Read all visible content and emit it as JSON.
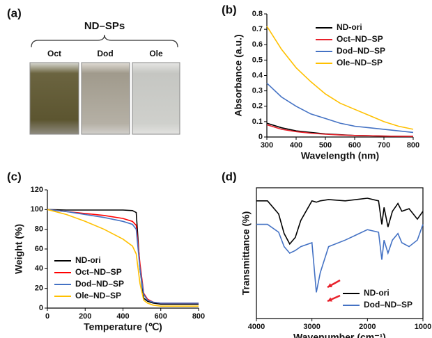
{
  "photo_panel": {
    "label": "(a)",
    "title": "ND–SPs",
    "samples": [
      "Oct",
      "Dod",
      "Ole"
    ]
  },
  "chart_data": [
    {
      "type": "line",
      "label": "(b)",
      "xlabel": "Wavelength (nm)",
      "ylabel": "Absorbance (a.u.)",
      "x": [
        300,
        350,
        400,
        450,
        500,
        550,
        600,
        650,
        700,
        750,
        800
      ],
      "xlim": [
        300,
        800
      ],
      "xticks": [
        300,
        400,
        500,
        600,
        700,
        800
      ],
      "ylim": [
        0,
        0.8
      ],
      "yticks": [
        0,
        0.1,
        0.2,
        0.3,
        0.4,
        0.5,
        0.6,
        0.7,
        0.8
      ],
      "legend": "upper right",
      "series": [
        {
          "name": "ND-ori",
          "color": "#000000",
          "values": [
            0.09,
            0.06,
            0.04,
            0.03,
            0.02,
            0.015,
            0.01,
            0.008,
            0.006,
            0.005,
            0.004
          ]
        },
        {
          "name": "Oct–ND–SP",
          "color": "#e8212b",
          "values": [
            0.08,
            0.05,
            0.035,
            0.025,
            0.018,
            0.013,
            0.01,
            0.008,
            0.006,
            0.005,
            0.004
          ]
        },
        {
          "name": "Dod–ND–SP",
          "color": "#4472c4",
          "values": [
            0.35,
            0.26,
            0.2,
            0.15,
            0.12,
            0.09,
            0.07,
            0.06,
            0.05,
            0.04,
            0.03
          ]
        },
        {
          "name": "Ole–ND–SP",
          "color": "#ffc000",
          "values": [
            0.72,
            0.57,
            0.45,
            0.36,
            0.28,
            0.22,
            0.18,
            0.14,
            0.1,
            0.07,
            0.05
          ]
        }
      ]
    },
    {
      "type": "line",
      "label": "(c)",
      "xlabel": "Temperature (℃)",
      "ylabel": "Weight (%)",
      "x": [
        0,
        100,
        200,
        300,
        400,
        450,
        470,
        490,
        510,
        530,
        560,
        600,
        700,
        800
      ],
      "xlim": [
        0,
        800
      ],
      "xticks": [
        0,
        200,
        400,
        600,
        800
      ],
      "ylim": [
        0,
        120
      ],
      "yticks": [
        0,
        20,
        40,
        60,
        80,
        100,
        120
      ],
      "legend": "lower left",
      "series": [
        {
          "name": "ND-ori",
          "color": "#000000",
          "values": [
            100,
            99.5,
            99.5,
            99.5,
            99.5,
            99,
            97,
            40,
            10,
            7,
            5,
            4,
            4,
            4
          ]
        },
        {
          "name": "Oct–ND–SP",
          "color": "#ff0000",
          "values": [
            100,
            98,
            96,
            94,
            91,
            88,
            84,
            45,
            15,
            9,
            6,
            5,
            5,
            5
          ]
        },
        {
          "name": "Dod–ND–SP",
          "color": "#4472c4",
          "values": [
            100,
            98,
            95,
            92,
            88,
            85,
            80,
            40,
            14,
            8,
            6,
            5,
            5,
            5
          ]
        },
        {
          "name": "Ole–ND–SP",
          "color": "#ffc000",
          "values": [
            100,
            95,
            88,
            80,
            70,
            63,
            55,
            25,
            8,
            5,
            3,
            2,
            2,
            2
          ]
        }
      ]
    },
    {
      "type": "line",
      "label": "(d)",
      "xlabel": "Wavenumber (cm⁻¹)",
      "ylabel": "Transmittance (%)",
      "x": [
        4000,
        3800,
        3600,
        3500,
        3400,
        3300,
        3200,
        3000,
        2920,
        2850,
        2700,
        2400,
        2000,
        1800,
        1740,
        1700,
        1630,
        1550,
        1450,
        1380,
        1250,
        1100,
        1000
      ],
      "xlim": [
        4000,
        1000
      ],
      "xticks": [
        4000,
        3000,
        2000,
        1000
      ],
      "ylim": [
        0,
        100
      ],
      "legend": "lower right",
      "series": [
        {
          "name": "ND-ori",
          "color": "#000000",
          "values": [
            90,
            90,
            80,
            65,
            57,
            62,
            75,
            90,
            89,
            90,
            91,
            90,
            92,
            90,
            72,
            85,
            70,
            82,
            88,
            82,
            84,
            76,
            82
          ]
        },
        {
          "name": "Dod–ND–SP",
          "color": "#4472c4",
          "values": [
            72,
            72,
            66,
            55,
            50,
            52,
            55,
            58,
            20,
            35,
            55,
            60,
            68,
            66,
            45,
            60,
            50,
            60,
            65,
            58,
            55,
            60,
            72
          ]
        }
      ]
    }
  ]
}
